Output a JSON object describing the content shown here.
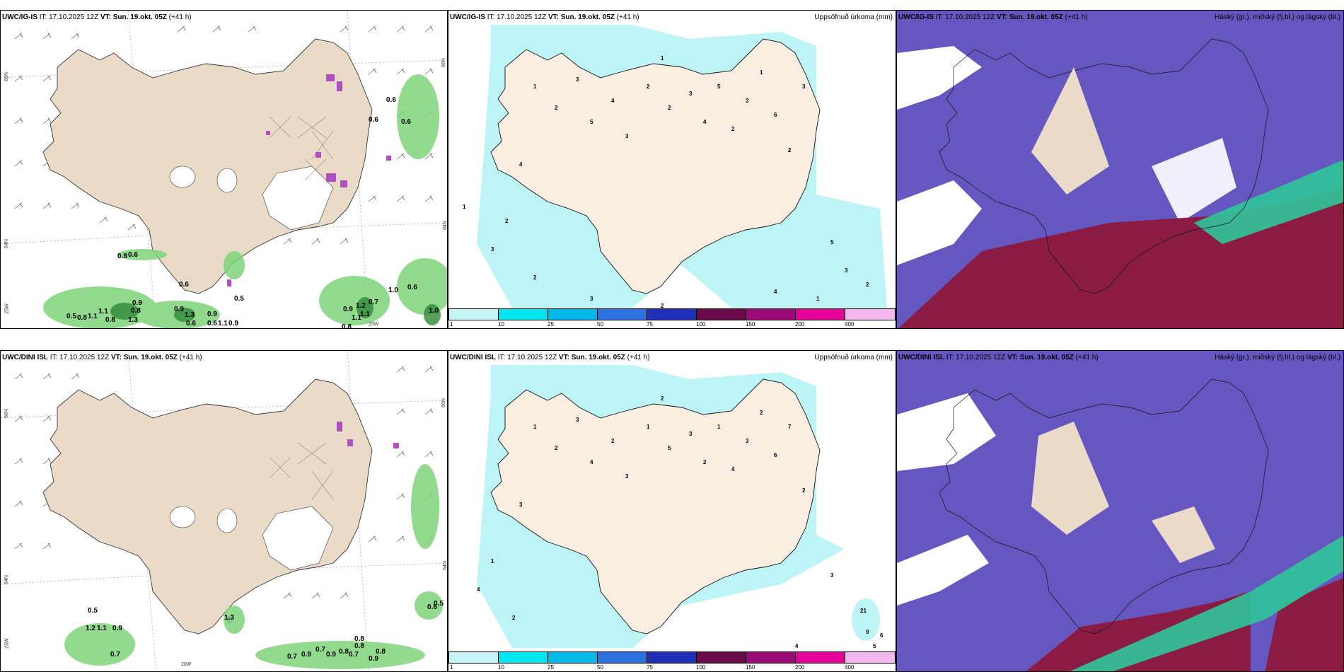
{
  "rows": [
    {
      "model_label": "UWC/IG-IS",
      "it_label": "IT: 17.10.2025 12Z",
      "vt_label": "VT: Sun. 19.okt. 05Z",
      "lead": "(+41 h)",
      "map_labels": {
        "lat_left_top": "66N",
        "lat_left_mid": "64N",
        "lat_left_bot": "25W",
        "lat_right_top": "66N",
        "lat_right_mid": "64N",
        "lon_bottom": "15W"
      },
      "precip_values": [
        "0.5",
        "0.8",
        "1.1",
        "1.1",
        "0.8",
        "0.9",
        "0.8",
        "1.3",
        "0.9",
        "1.3",
        "0.6",
        "0.9",
        "0.6",
        "1.1",
        "0.9",
        "0.6",
        "0.5",
        "1.0",
        "0.6",
        "0.9",
        "1.1",
        "0.8",
        "1.2",
        "0.7",
        "1.1",
        "0.6",
        "0.6",
        "0.8",
        "0.6",
        "0.6",
        "1.0"
      ],
      "totals_numbers": [
        "1",
        "2",
        "3",
        "5",
        "4",
        "3",
        "2",
        "1",
        "2",
        "3",
        "4",
        "5",
        "2",
        "3",
        "1",
        "6",
        "2",
        "3",
        "4",
        "2",
        "3",
        "1",
        "2",
        "5",
        "3",
        "2",
        "1",
        "4",
        "3",
        "2"
      ]
    },
    {
      "model_label": "UWC/DINI ISL",
      "it_label": "IT: 17.10.2025 12Z",
      "vt_label": "VT: Sun. 19.okt. 05Z",
      "lead": "(+41 h)",
      "map_labels": {
        "lat_left_top": "66N",
        "lat_left_mid": "64N",
        "lat_left_bot": "25W",
        "lat_right_top": "66N",
        "lat_right_mid": "64N",
        "lon_bottom": "20W"
      },
      "precip_values": [
        "0.5",
        "1.2",
        "1.1",
        "0.9",
        "0.7",
        "0.7",
        "0.9",
        "0.7",
        "0.9",
        "0.8",
        "0.7",
        "0.8",
        "0.8",
        "0.9",
        "0.8",
        "0.6",
        "0.5",
        "1.3"
      ],
      "totals_numbers": [
        "1",
        "2",
        "3",
        "4",
        "2",
        "3",
        "1",
        "2",
        "5",
        "3",
        "2",
        "1",
        "4",
        "3",
        "2",
        "6",
        "7",
        "2",
        "3",
        "1",
        "4",
        "2",
        "3",
        "9",
        "21",
        "5",
        "6",
        "4"
      ]
    }
  ],
  "precip_title": "Uppsöfnuð úrkoma (mm)",
  "cloud_title": "Háský (gr.), miðský (fj.bl.) og lágský (bl.)",
  "colorbar": {
    "ticks": [
      "1",
      "10",
      "25",
      "50",
      "75",
      "100",
      "150",
      "200",
      "400"
    ],
    "colors": [
      "#c6f5f8",
      "#00e6f0",
      "#00b8e8",
      "#2d70e0",
      "#1f2fb8",
      "#6a0a4a",
      "#9a0a78",
      "#e6009a",
      "#f3b6ee"
    ]
  },
  "colors": {
    "land": "#eadbc8",
    "sea": "#ffffff",
    "precip_green": "#7ed37a",
    "precip_dark": "#2f8a3a",
    "snow_purple": "#b04fc0",
    "totals_light": "#bdf4f6",
    "totals_land": "#faeee2",
    "high_cloud": "#6656c0",
    "mid_cloud_red": "#8a1c44",
    "low_cloud_green": "#2fc79a"
  }
}
